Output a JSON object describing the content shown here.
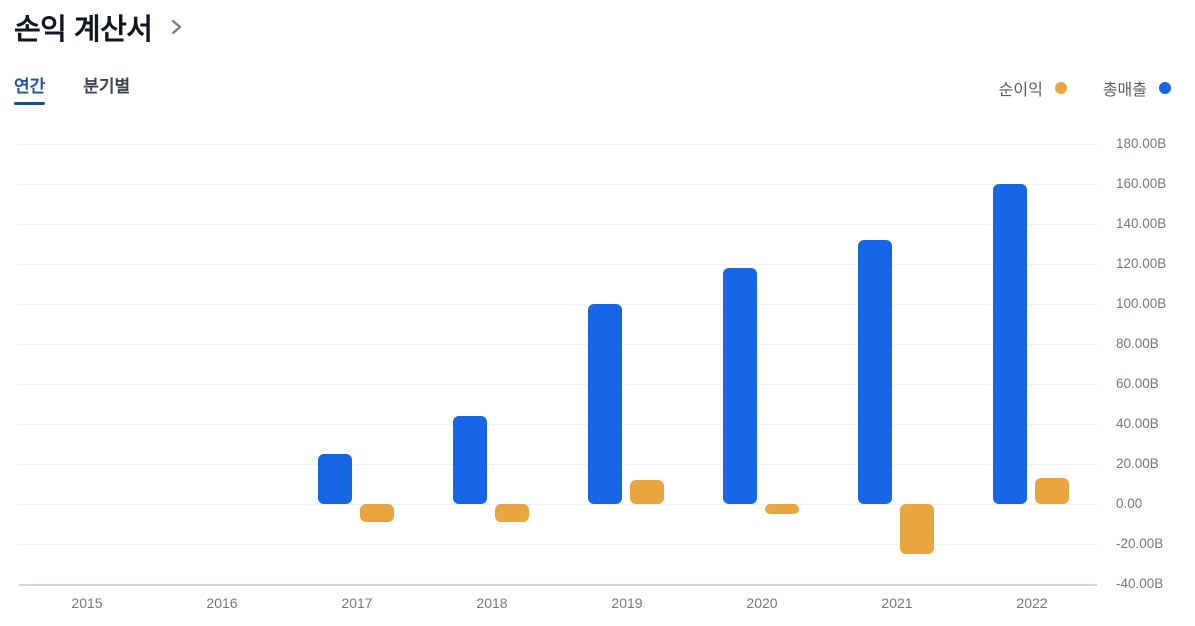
{
  "header": {
    "title": "손익 계산서"
  },
  "tabs": [
    {
      "label": "연간",
      "active": true
    },
    {
      "label": "분기별",
      "active": false
    }
  ],
  "legend": [
    {
      "label": "순이익",
      "color": "#E9A53F"
    },
    {
      "label": "총매출",
      "color": "#1766E5"
    }
  ],
  "colors": {
    "background": "#FFFFFF",
    "title_text": "#131722",
    "active_tab": "#1F5799",
    "active_tab_underline": "#1D4E85",
    "inactive_tab": "#40444F",
    "axis_text": "#75787F",
    "grid_line": "#F1F2F6",
    "axis_line": "#D1D4DC",
    "net_income": "#E9A53F",
    "revenue": "#1766E5"
  },
  "chart_data": {
    "type": "bar",
    "title": "손익 계산서",
    "categories": [
      "2015",
      "2016",
      "2017",
      "2018",
      "2019",
      "2020",
      "2021",
      "2022"
    ],
    "series": [
      {
        "key": "net-income",
        "name": "순이익",
        "color": "#E9A53F",
        "values": [
          null,
          null,
          -9,
          -9,
          12,
          -5,
          -25,
          13
        ]
      },
      {
        "key": "revenue",
        "name": "총매출",
        "color": "#1766E5",
        "values": [
          null,
          null,
          25,
          44,
          100,
          118,
          132,
          160
        ]
      }
    ],
    "unit": "B",
    "y_ticks": [
      "180.00B",
      "160.00B",
      "140.00B",
      "120.00B",
      "100.00B",
      "80.00B",
      "60.00B",
      "40.00B",
      "20.00B",
      "0.00",
      "-20.00B",
      "-40.00B"
    ],
    "y_tick_values": [
      180,
      160,
      140,
      120,
      100,
      80,
      60,
      40,
      20,
      0,
      -20,
      -40
    ],
    "ylim": [
      -40,
      180
    ],
    "grid": true,
    "legend_position": "top-right"
  }
}
